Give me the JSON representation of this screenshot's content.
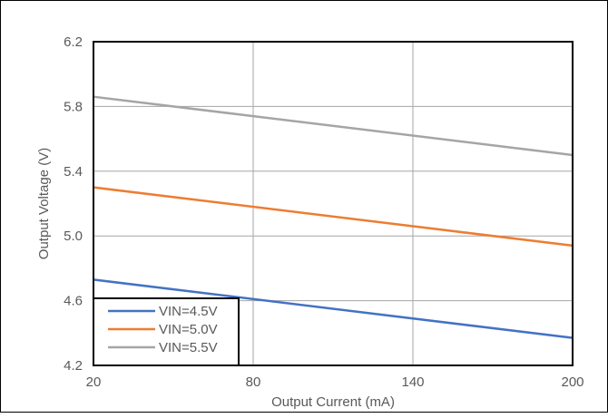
{
  "chart_data": {
    "type": "line",
    "title": "",
    "xlabel": "Output Current (mA)",
    "ylabel": "Output Voltage (V)",
    "xlim": [
      20,
      200
    ],
    "ylim": [
      4.2,
      6.2
    ],
    "x_ticks": [
      "20",
      "80",
      "140",
      "200"
    ],
    "y_ticks": [
      "4.2",
      "4.6",
      "5.0",
      "5.4",
      "5.8",
      "6.2"
    ],
    "grid": true,
    "legend_position": "bottom-left",
    "series": [
      {
        "name": "VIN=4.5V",
        "color": "#4472C4",
        "x": [
          20,
          200
        ],
        "y": [
          4.73,
          4.37
        ]
      },
      {
        "name": "VIN=5.0V",
        "color": "#ED7D31",
        "x": [
          20,
          200
        ],
        "y": [
          5.3,
          4.94
        ]
      },
      {
        "name": "VIN=5.5V",
        "color": "#A5A5A5",
        "x": [
          20,
          200
        ],
        "y": [
          5.86,
          5.5
        ]
      }
    ]
  }
}
